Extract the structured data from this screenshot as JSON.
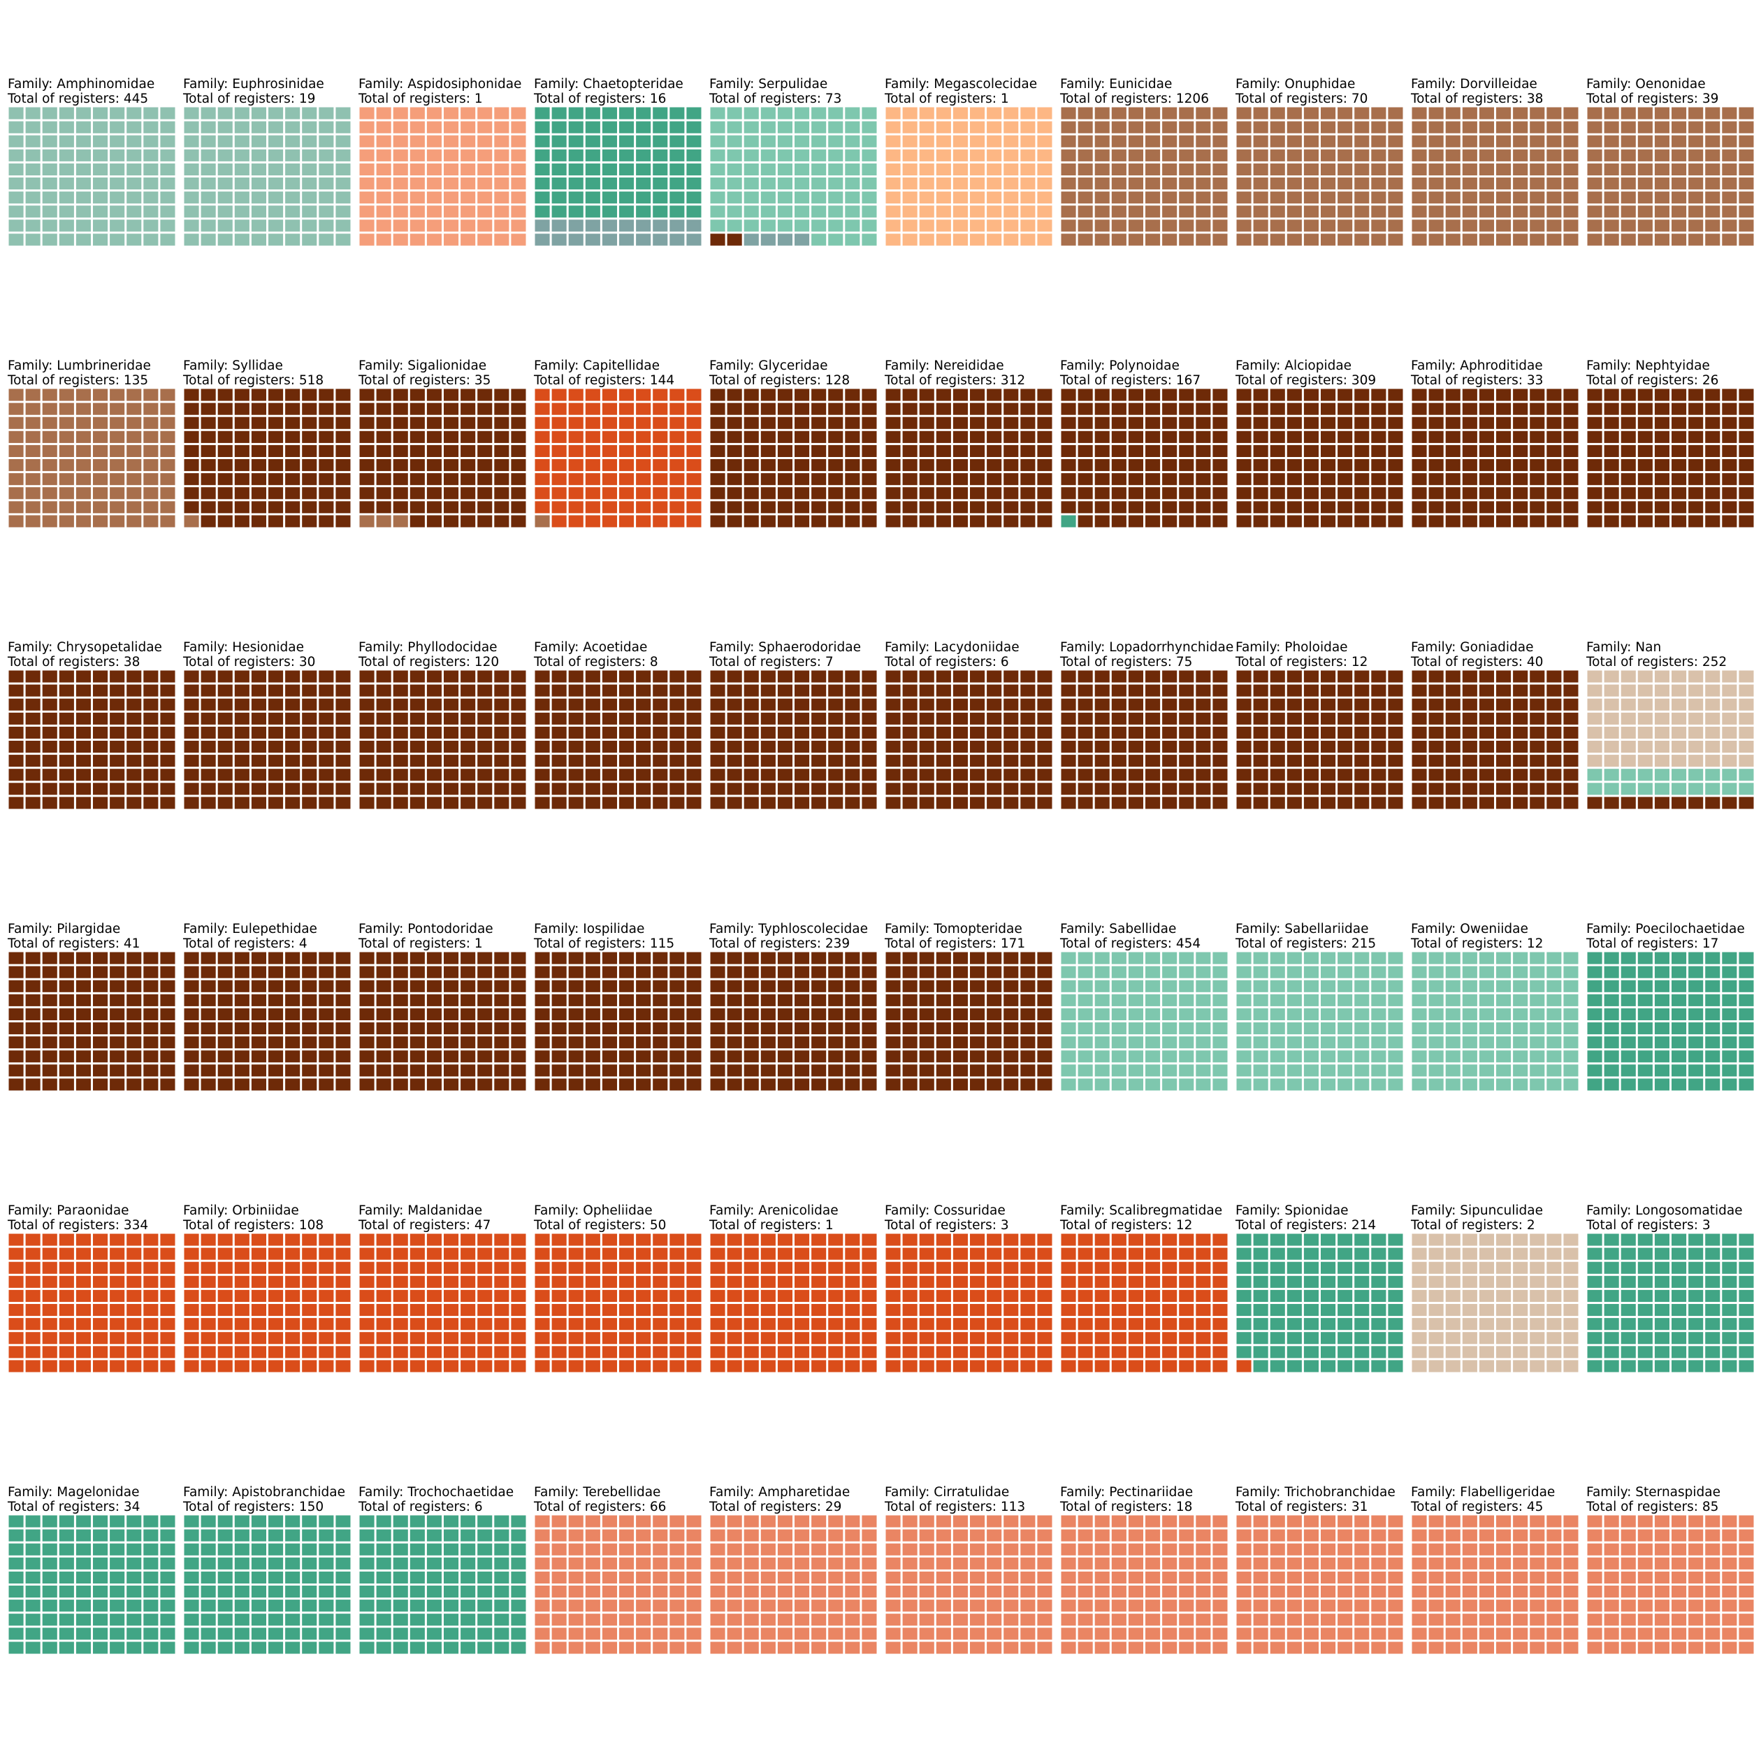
{
  "chart_data": {
    "type": "waffle",
    "grid": {
      "rows": 10,
      "cols": 10
    },
    "colors": {
      "a": "#8fc1b0",
      "b": "#f59e7a",
      "c": "#41a585",
      "d": "#7fa3a3",
      "e": "#7ec7ae",
      "f": "#fdb784",
      "g": "#a86f4c",
      "h": "#6e2a08",
      "i": "#da4d1a",
      "j": "#d9c1aa",
      "k": "#ea8563"
    },
    "panels": [
      {
        "family": "Family: Amphinomidae",
        "total": "Total of registers: 445",
        "cells": [
          [
            "a",
            100
          ]
        ]
      },
      {
        "family": "Family: Euphrosinidae",
        "total": "Total of registers: 19",
        "cells": [
          [
            "a",
            100
          ]
        ]
      },
      {
        "family": "Family: Aspidosiphonidae",
        "total": "Total of registers: 1",
        "cells": [
          [
            "b",
            100
          ]
        ]
      },
      {
        "family": "Family: Chaetopteridae",
        "total": "Total of registers: 16",
        "cells": [
          [
            "d",
            20
          ],
          [
            "c",
            80
          ]
        ]
      },
      {
        "family": "Family: Serpulidae",
        "total": "Total of registers: 73",
        "cells": [
          [
            "h",
            2
          ],
          [
            "d",
            4
          ],
          [
            "e",
            94
          ]
        ]
      },
      {
        "family": "Family: Megascolecidae",
        "total": "Total of registers: 1",
        "cells": [
          [
            "f",
            100
          ]
        ]
      },
      {
        "family": "Family: Eunicidae",
        "total": "Total of registers: 1206",
        "cells": [
          [
            "g",
            100
          ]
        ]
      },
      {
        "family": "Family: Onuphidae",
        "total": "Total of registers: 70",
        "cells": [
          [
            "g",
            100
          ]
        ]
      },
      {
        "family": "Family: Dorvilleidae",
        "total": "Total of registers: 38",
        "cells": [
          [
            "g",
            100
          ]
        ]
      },
      {
        "family": "Family: Oenonidae",
        "total": "Total of registers: 39",
        "cells": [
          [
            "g",
            100
          ]
        ]
      },
      {
        "family": "Family: Lumbrineridae",
        "total": "Total of registers: 135",
        "cells": [
          [
            "g",
            100
          ]
        ]
      },
      {
        "family": "Family: Syllidae",
        "total": "Total of registers: 518",
        "cells": [
          [
            "g",
            1
          ],
          [
            "h",
            99
          ]
        ]
      },
      {
        "family": "Family: Sigalionidae",
        "total": "Total of registers: 35",
        "cells": [
          [
            "g",
            3
          ],
          [
            "h",
            97
          ]
        ]
      },
      {
        "family": "Family: Capitellidae",
        "total": "Total of registers: 144",
        "cells": [
          [
            "g",
            1
          ],
          [
            "i",
            99
          ]
        ]
      },
      {
        "family": "Family: Glyceridae",
        "total": "Total of registers: 128",
        "cells": [
          [
            "h",
            100
          ]
        ]
      },
      {
        "family": "Family: Nereididae",
        "total": "Total of registers: 312",
        "cells": [
          [
            "h",
            100
          ]
        ]
      },
      {
        "family": "Family: Polynoidae",
        "total": "Total of registers: 167",
        "cells": [
          [
            "c",
            1
          ],
          [
            "h",
            99
          ]
        ]
      },
      {
        "family": "Family: Alciopidae",
        "total": "Total of registers: 309",
        "cells": [
          [
            "h",
            100
          ]
        ]
      },
      {
        "family": "Family: Aphroditidae",
        "total": "Total of registers: 33",
        "cells": [
          [
            "h",
            100
          ]
        ]
      },
      {
        "family": "Family: Nephtyidae",
        "total": "Total of registers: 26",
        "cells": [
          [
            "h",
            100
          ]
        ]
      },
      {
        "family": "Family: Chrysopetalidae",
        "total": "Total of registers: 38",
        "cells": [
          [
            "h",
            100
          ]
        ]
      },
      {
        "family": "Family: Hesionidae",
        "total": "Total of registers: 30",
        "cells": [
          [
            "h",
            100
          ]
        ]
      },
      {
        "family": "Family: Phyllodocidae",
        "total": "Total of registers: 120",
        "cells": [
          [
            "h",
            100
          ]
        ]
      },
      {
        "family": "Family: Acoetidae",
        "total": "Total of registers: 8",
        "cells": [
          [
            "h",
            100
          ]
        ]
      },
      {
        "family": "Family: Sphaerodoridae",
        "total": "Total of registers: 7",
        "cells": [
          [
            "h",
            100
          ]
        ]
      },
      {
        "family": "Family: Lacydoniidae",
        "total": "Total of registers: 6",
        "cells": [
          [
            "h",
            100
          ]
        ]
      },
      {
        "family": "Family: Lopadorrhynchidae",
        "total": "Total of registers: 75",
        "cells": [
          [
            "h",
            100
          ]
        ]
      },
      {
        "family": "Family: Pholoidae",
        "total": "Total of registers: 12",
        "cells": [
          [
            "h",
            100
          ]
        ]
      },
      {
        "family": "Family: Goniadidae",
        "total": "Total of registers: 40",
        "cells": [
          [
            "h",
            100
          ]
        ]
      },
      {
        "family": "Family: Nan",
        "total": "Total of registers: 252",
        "cells": [
          [
            "h",
            10
          ],
          [
            "e",
            20
          ],
          [
            "j",
            70
          ]
        ]
      },
      {
        "family": "Family: Pilargidae",
        "total": "Total of registers: 41",
        "cells": [
          [
            "h",
            100
          ]
        ]
      },
      {
        "family": "Family: Eulepethidae",
        "total": "Total of registers: 4",
        "cells": [
          [
            "h",
            100
          ]
        ]
      },
      {
        "family": "Family: Pontodoridae",
        "total": "Total of registers: 1",
        "cells": [
          [
            "h",
            100
          ]
        ]
      },
      {
        "family": "Family: Iospilidae",
        "total": "Total of registers: 115",
        "cells": [
          [
            "h",
            100
          ]
        ]
      },
      {
        "family": "Family: Typhloscolecidae",
        "total": "Total of registers: 239",
        "cells": [
          [
            "h",
            100
          ]
        ]
      },
      {
        "family": "Family: Tomopteridae",
        "total": "Total of registers: 171",
        "cells": [
          [
            "h",
            100
          ]
        ]
      },
      {
        "family": "Family: Sabellidae",
        "total": "Total of registers: 454",
        "cells": [
          [
            "e",
            100
          ]
        ]
      },
      {
        "family": "Family: Sabellariidae",
        "total": "Total of registers: 215",
        "cells": [
          [
            "e",
            100
          ]
        ]
      },
      {
        "family": "Family: Oweniidae",
        "total": "Total of registers: 12",
        "cells": [
          [
            "e",
            100
          ]
        ]
      },
      {
        "family": "Family: Poecilochaetidae",
        "total": "Total of registers: 17",
        "cells": [
          [
            "c",
            100
          ]
        ]
      },
      {
        "family": "Family: Paraonidae",
        "total": "Total of registers: 334",
        "cells": [
          [
            "i",
            100
          ]
        ]
      },
      {
        "family": "Family: Orbiniidae",
        "total": "Total of registers: 108",
        "cells": [
          [
            "i",
            100
          ]
        ]
      },
      {
        "family": "Family: Maldanidae",
        "total": "Total of registers: 47",
        "cells": [
          [
            "i",
            100
          ]
        ]
      },
      {
        "family": "Family: Opheliidae",
        "total": "Total of registers: 50",
        "cells": [
          [
            "i",
            100
          ]
        ]
      },
      {
        "family": "Family: Arenicolidae",
        "total": "Total of registers: 1",
        "cells": [
          [
            "i",
            100
          ]
        ]
      },
      {
        "family": "Family: Cossuridae",
        "total": "Total of registers: 3",
        "cells": [
          [
            "i",
            100
          ]
        ]
      },
      {
        "family": "Family: Scalibregmatidae",
        "total": "Total of registers: 12",
        "cells": [
          [
            "i",
            100
          ]
        ]
      },
      {
        "family": "Family: Spionidae",
        "total": "Total of registers: 214",
        "cells": [
          [
            "i",
            1
          ],
          [
            "c",
            99
          ]
        ]
      },
      {
        "family": "Family: Sipunculidae",
        "total": "Total of registers: 2",
        "cells": [
          [
            "j",
            100
          ]
        ]
      },
      {
        "family": "Family: Longosomatidae",
        "total": "Total of registers: 3",
        "cells": [
          [
            "c",
            100
          ]
        ]
      },
      {
        "family": "Family: Magelonidae",
        "total": "Total of registers: 34",
        "cells": [
          [
            "c",
            100
          ]
        ]
      },
      {
        "family": "Family: Apistobranchidae",
        "total": "Total of registers: 150",
        "cells": [
          [
            "c",
            100
          ]
        ]
      },
      {
        "family": "Family: Trochochaetidae",
        "total": "Total of registers: 6",
        "cells": [
          [
            "c",
            100
          ]
        ]
      },
      {
        "family": "Family: Terebellidae",
        "total": "Total of registers: 66",
        "cells": [
          [
            "k",
            100
          ]
        ]
      },
      {
        "family": "Family: Ampharetidae",
        "total": "Total of registers: 29",
        "cells": [
          [
            "k",
            100
          ]
        ]
      },
      {
        "family": "Family: Cirratulidae",
        "total": "Total of registers: 113",
        "cells": [
          [
            "k",
            100
          ]
        ]
      },
      {
        "family": "Family: Pectinariidae",
        "total": "Total of registers: 18",
        "cells": [
          [
            "k",
            100
          ]
        ]
      },
      {
        "family": "Family: Trichobranchidae",
        "total": "Total of registers: 31",
        "cells": [
          [
            "k",
            100
          ]
        ]
      },
      {
        "family": "Family: Flabelligeridae",
        "total": "Total of registers: 45",
        "cells": [
          [
            "k",
            100
          ]
        ]
      },
      {
        "family": "Family: Sternaspidae",
        "total": "Total of registers: 85",
        "cells": [
          [
            "k",
            100
          ]
        ]
      }
    ]
  }
}
